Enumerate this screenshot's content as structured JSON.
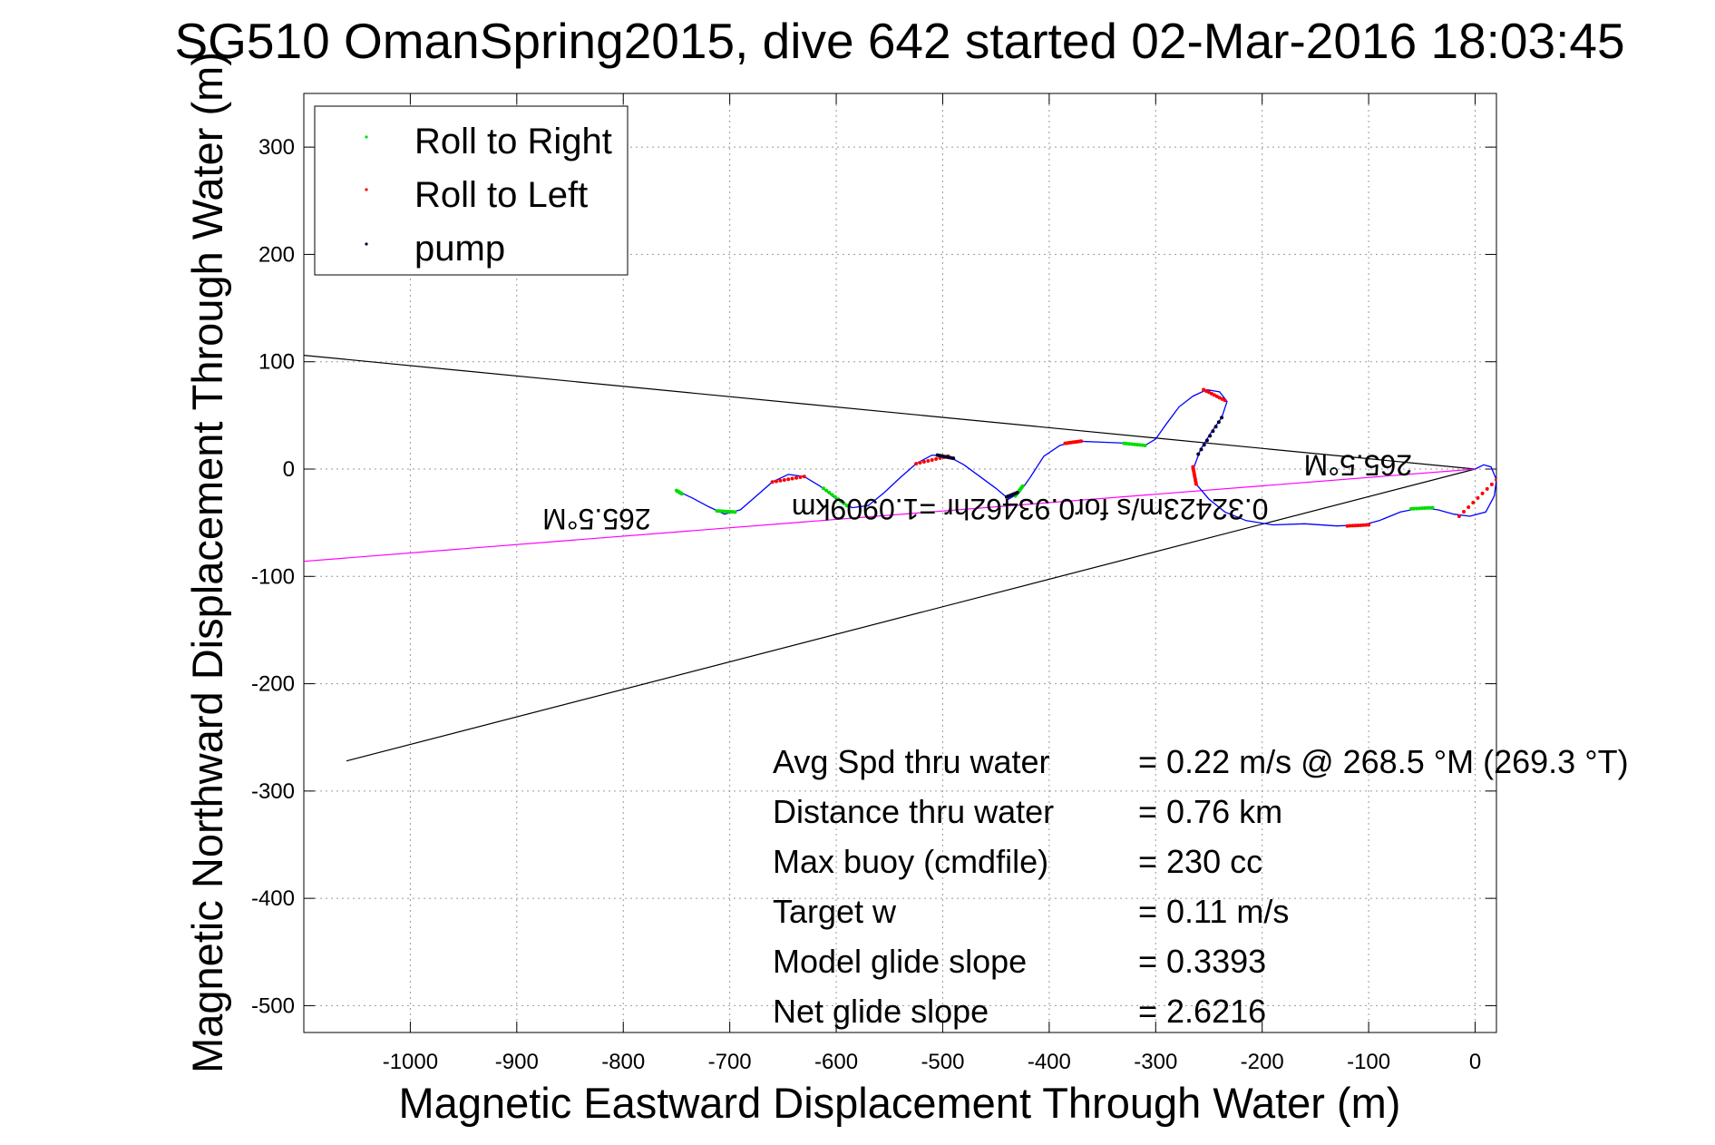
{
  "chart_data": {
    "type": "scatter",
    "title": "SG510 OmanSpring2015, dive 642 started 02-Mar-2016 18:03:45",
    "xlabel": "Magnetic Eastward Displacement Through Water (m)",
    "ylabel": "Magnetic Northward Displacement Through Water (m)",
    "xlim": [
      -1100,
      20
    ],
    "ylim": [
      -525,
      350
    ],
    "xticks": [
      -1000,
      -900,
      -800,
      -700,
      -600,
      -500,
      -400,
      -300,
      -200,
      -100,
      0
    ],
    "yticks": [
      300,
      200,
      100,
      0,
      -100,
      -200,
      -300,
      -400,
      -500
    ],
    "grid": true,
    "legend_position": "top-left",
    "legend": [
      {
        "name": "Roll to Right",
        "color": "#00dd00"
      },
      {
        "name": "Roll to Left",
        "color": "#ff0000"
      },
      {
        "name": "pump",
        "color": "#000033"
      }
    ],
    "track": {
      "color": "#0000ff",
      "points": [
        [
          -750,
          -20
        ],
        [
          -735,
          -27
        ],
        [
          -720,
          -35
        ],
        [
          -705,
          -42
        ],
        [
          -690,
          -38
        ],
        [
          -675,
          -25
        ],
        [
          -660,
          -12
        ],
        [
          -645,
          -5
        ],
        [
          -630,
          -7
        ],
        [
          -615,
          -16
        ],
        [
          -600,
          -28
        ],
        [
          -585,
          -36
        ],
        [
          -570,
          -34
        ],
        [
          -555,
          -22
        ],
        [
          -540,
          -8
        ],
        [
          -525,
          5
        ],
        [
          -510,
          13
        ],
        [
          -495,
          12
        ],
        [
          -480,
          4
        ],
        [
          -465,
          -7
        ],
        [
          -450,
          -18
        ],
        [
          -438,
          -28
        ],
        [
          -428,
          -22
        ],
        [
          -418,
          -8
        ],
        [
          -405,
          12
        ],
        [
          -390,
          22
        ],
        [
          -375,
          26
        ],
        [
          -350,
          25
        ],
        [
          -325,
          24
        ],
        [
          -310,
          22
        ],
        [
          -300,
          28
        ],
        [
          -290,
          42
        ],
        [
          -278,
          58
        ],
        [
          -265,
          68
        ],
        [
          -252,
          74
        ],
        [
          -240,
          72
        ],
        [
          -233,
          63
        ],
        [
          -238,
          48
        ],
        [
          -248,
          34
        ],
        [
          -258,
          18
        ],
        [
          -264,
          2
        ],
        [
          -262,
          -14
        ],
        [
          -250,
          -28
        ],
        [
          -235,
          -40
        ],
        [
          -215,
          -48
        ],
        [
          -190,
          -52
        ],
        [
          -160,
          -51
        ],
        [
          -130,
          -53
        ],
        [
          -105,
          -52
        ],
        [
          -90,
          -48
        ],
        [
          -70,
          -40
        ],
        [
          -50,
          -36
        ],
        [
          -35,
          -38
        ],
        [
          -20,
          -42
        ],
        [
          -5,
          -44
        ],
        [
          10,
          -40
        ],
        [
          18,
          -25
        ],
        [
          20,
          -10
        ],
        [
          15,
          2
        ],
        [
          8,
          4
        ],
        [
          0,
          0
        ]
      ]
    },
    "roll_right_segments": [
      [
        [
          -750,
          -20
        ],
        [
          -745,
          -23
        ]
      ],
      [
        [
          -712,
          -39
        ],
        [
          -695,
          -40
        ]
      ],
      [
        [
          -612,
          -18
        ],
        [
          -590,
          -34
        ]
      ],
      [
        [
          -432,
          -25
        ],
        [
          -425,
          -16
        ]
      ],
      [
        [
          -330,
          24
        ],
        [
          -310,
          22
        ]
      ],
      [
        [
          -60,
          -37
        ],
        [
          -40,
          -36
        ]
      ]
    ],
    "roll_left_segments": [
      [
        [
          -660,
          -12
        ],
        [
          -630,
          -7
        ]
      ],
      [
        [
          -525,
          5
        ],
        [
          -495,
          12
        ]
      ],
      [
        [
          -385,
          24
        ],
        [
          -370,
          26
        ]
      ],
      [
        [
          -255,
          74
        ],
        [
          -235,
          64
        ]
      ],
      [
        [
          -265,
          2
        ],
        [
          -262,
          -14
        ]
      ],
      [
        [
          -120,
          -53
        ],
        [
          -100,
          -52
        ]
      ],
      [
        [
          -15,
          -44
        ],
        [
          20,
          -10
        ]
      ]
    ],
    "pump_segments": [
      [
        [
          -505,
          13
        ],
        [
          -490,
          10
        ]
      ],
      [
        [
          -440,
          -26
        ],
        [
          -430,
          -22
        ]
      ],
      [
        [
          -238,
          48
        ],
        [
          -260,
          14
        ]
      ]
    ],
    "lines": [
      {
        "name": "bearing-upper",
        "color": "#000000",
        "points": [
          [
            -1100,
            106
          ],
          [
            0,
            0
          ]
        ]
      },
      {
        "name": "bearing-lower",
        "color": "#000000",
        "points": [
          [
            -1060,
            -272
          ],
          [
            0,
            0
          ]
        ]
      },
      {
        "name": "heading-line",
        "color": "#ff00ff",
        "points": [
          [
            -1100,
            -86
          ],
          [
            0,
            0
          ]
        ]
      }
    ],
    "annotations": [
      {
        "text": "265.5°M",
        "x": -825,
        "y": -37,
        "rotation": 180
      },
      {
        "text": "265.5°M",
        "x": -110,
        "y": 13,
        "rotation": 180
      },
      {
        "text": "0.32423m/s for0.93462hr =1.0909km",
        "x": -418,
        "y": -28,
        "rotation": 180
      }
    ],
    "stats": [
      {
        "label": "Avg Spd thru water",
        "value": "=  0.22 m/s @ 268.5 °M (269.3 °T)"
      },
      {
        "label": "Distance thru water",
        "value": "=  0.76 km"
      },
      {
        "label": "Max buoy (cmdfile)",
        "value": "= 230 cc"
      },
      {
        "label": "Target w",
        "value": "= 0.11 m/s"
      },
      {
        "label": "Model glide slope",
        "value": "= 0.3393"
      },
      {
        "label": "Net glide slope",
        "value": "= 2.6216"
      }
    ]
  }
}
